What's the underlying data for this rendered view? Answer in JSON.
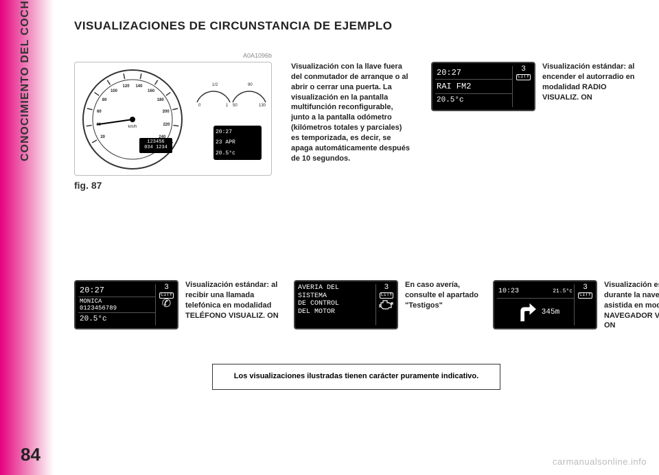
{
  "side_label": "CONOCIMIENTO DEL COCHE",
  "page_number": "84",
  "title": "VISUALIZACIONES DE CIRCUNSTANCIA DE EJEMPLO",
  "image_id": "A0A1096b",
  "fig_label": "fig. 87",
  "dashboard": {
    "speed_ticks": [
      "20",
      "40",
      "60",
      "80",
      "100",
      "120",
      "140",
      "160",
      "180",
      "200",
      "220",
      "240"
    ],
    "speed_unit": "km/h",
    "odo_total": "123456",
    "odo_trip": "034 1234",
    "mini_lcd": {
      "time": "20:27",
      "date": "23 APR",
      "temp": "20.5°c"
    },
    "fuel_labels": [
      "0",
      "1/2",
      "1"
    ],
    "temp_labels": [
      "50",
      "90",
      "130"
    ]
  },
  "caption1": "Visualización con la llave fuera del conmutador de arranque o al abrir o cerrar una puerta. La visualización en la pantalla multifunción reconfigurable, junto a la pantalla odómetro (kilómetros totales y parciales) es temporizada, es decir, se apaga automáticamente después de 10 segundos.",
  "radio_lcd": {
    "time": "20:27",
    "station": "RAI FM2",
    "temp": "20.5°c",
    "mode": "3",
    "city": "CITY"
  },
  "caption_radio": "Visualización estándar: al encender el autorradio en modalidad RADIO VISUALIZ. ON",
  "phone_lcd": {
    "time": "20:27",
    "name": "MONICA",
    "number": "0123456789",
    "temp": "20.5°c",
    "mode": "3",
    "city": "CITY"
  },
  "caption_phone": "Visualización estándar: al recibir una llamada telefónica en modalidad TELÉFONO VISUALIZ. ON",
  "warn_lcd": {
    "line1": "AVERIA DEL",
    "line2": "SISTEMA",
    "line3": "DE CONTROL",
    "line4": "DEL MOTOR",
    "mode": "3",
    "city": "CITY"
  },
  "caption_warn": "En caso avería, consulte el apartado \"Testigos\"",
  "nav_lcd": {
    "time": "10:23",
    "temp_small": "21.5°c",
    "distance": "345m",
    "mode": "3",
    "city": "CITY"
  },
  "caption_nav": "Visualización estándar: durante la navegación asistida en modalidad NAVEGADOR VISUALIZ. ON",
  "note": "Los visualizaciones ilustradas tienen carácter puramente indicativo.",
  "watermark": "carmanualsonline.info",
  "colors": {
    "magenta": "#e5007e",
    "text": "#222222",
    "lcd_bg": "#000000",
    "lcd_fg": "#ffffff"
  }
}
